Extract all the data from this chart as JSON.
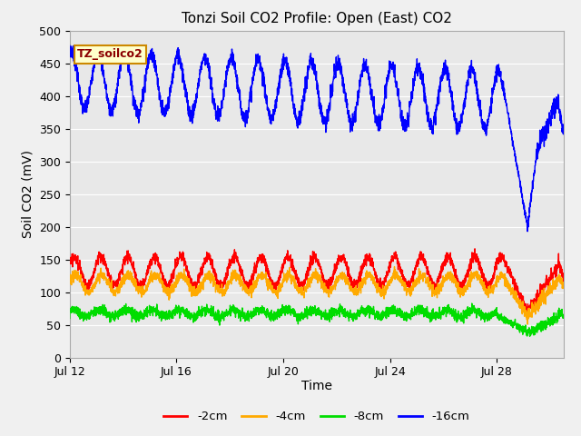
{
  "title": "Tonzi Soil CO2 Profile: Open (East) CO2",
  "ylabel": "Soil CO2 (mV)",
  "xlabel": "Time",
  "ylim": [
    0,
    500
  ],
  "x_tick_labels": [
    "Jul 12",
    "Jul 16",
    "Jul 20",
    "Jul 24",
    "Jul 28"
  ],
  "x_tick_positions": [
    0,
    4,
    8,
    12,
    16
  ],
  "legend_labels": [
    "-2cm",
    "-4cm",
    "-8cm",
    "-16cm"
  ],
  "legend_colors": [
    "#ff0000",
    "#ffaa00",
    "#00dd00",
    "#0000ff"
  ],
  "watermark_text": "TZ_soilco2",
  "watermark_bg": "#ffffcc",
  "watermark_border": "#cc8800",
  "bg_color": "#e8e8e8",
  "fig_bg": "#f0f0f0",
  "title_fontsize": 11,
  "axis_fontsize": 10,
  "tick_fontsize": 9
}
